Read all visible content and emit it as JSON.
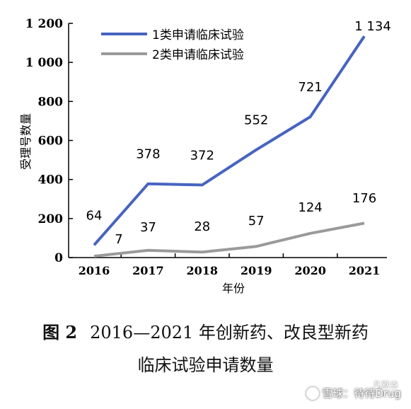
{
  "chart_data": {
    "type": "line",
    "x": [
      "2016",
      "2017",
      "2018",
      "2019",
      "2020",
      "2021"
    ],
    "series": [
      {
        "name": "1类申请临床试验",
        "values": [
          64,
          378,
          372,
          552,
          721,
          1134
        ],
        "labels": [
          "64",
          "378",
          "372",
          "552",
          "721",
          "1 134"
        ],
        "color": "#4664c0"
      },
      {
        "name": "2类申请临床试验",
        "values": [
          7,
          37,
          28,
          57,
          124,
          176
        ],
        "labels": [
          "7",
          "37",
          "28",
          "57",
          "124",
          "176"
        ],
        "color": "#9a9a9a"
      }
    ],
    "xlabel": "年份",
    "ylabel": "受理号数量",
    "ylim": [
      0,
      1200
    ],
    "yticks": [
      0,
      200,
      400,
      600,
      800,
      1000,
      1200
    ],
    "ytick_labels": [
      "0",
      "200",
      "400",
      "600",
      "800",
      "1 000",
      "1 200"
    ],
    "grid": false,
    "legend": "top-left"
  },
  "caption": {
    "figure_label": "图 2",
    "line1": "2016—2021 年创新药、改良型新药",
    "line2": "临床试验申请数量"
  },
  "watermark": {
    "text": "雪球：待待Drug",
    "sub": "凡默谷"
  }
}
